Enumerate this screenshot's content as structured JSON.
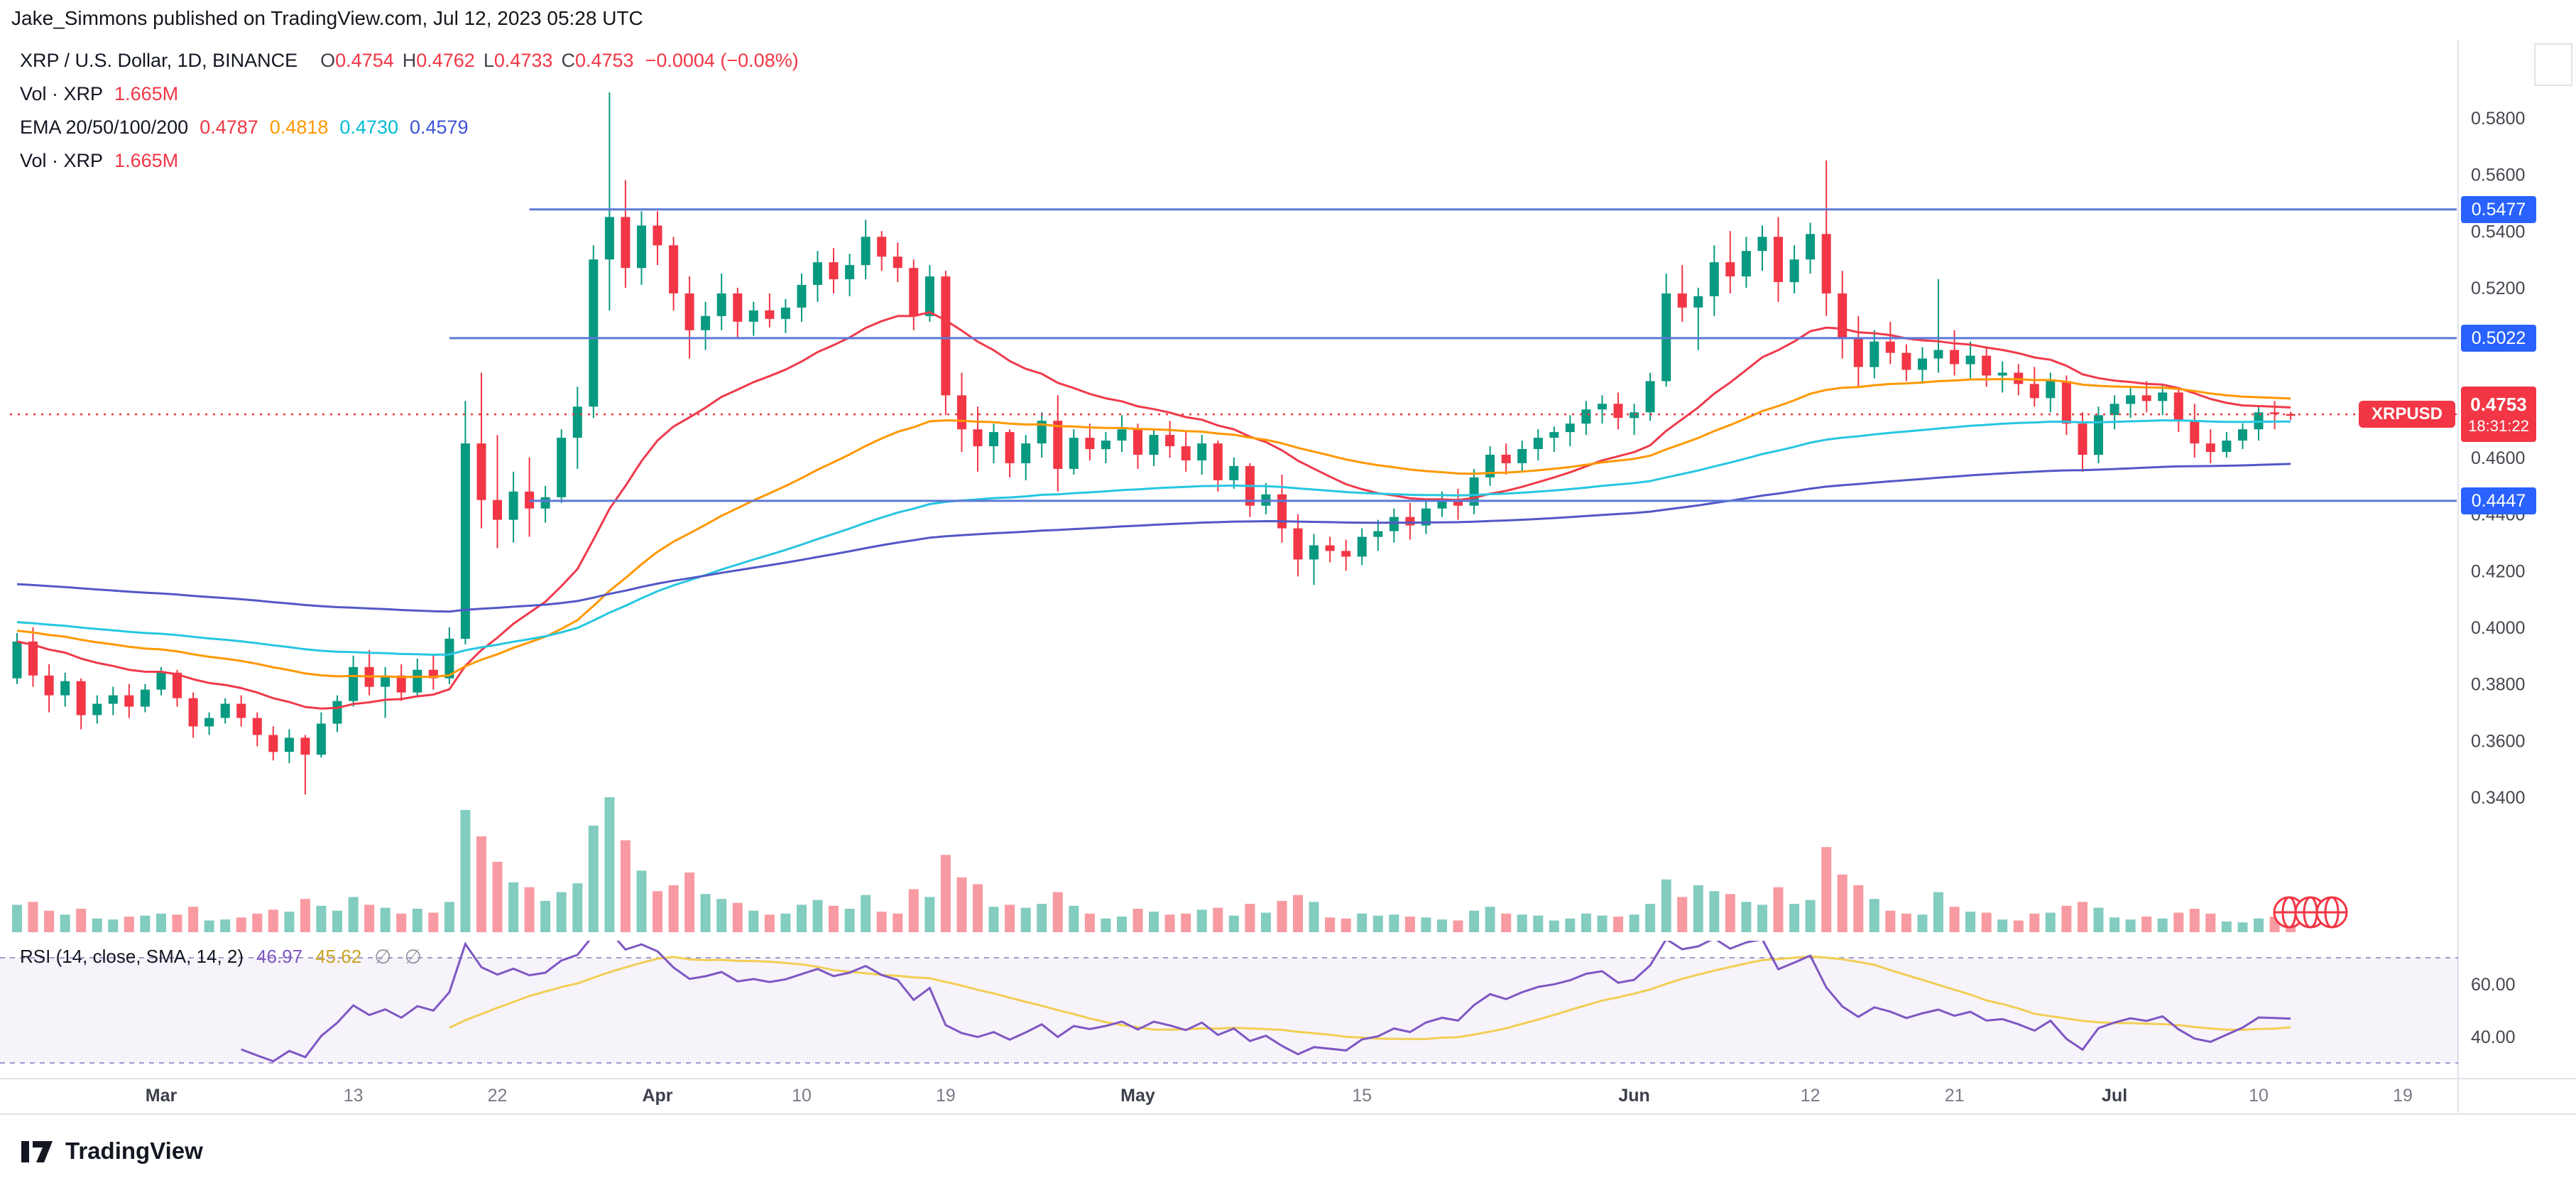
{
  "header": {
    "author": "Jake_Simmons",
    "rest": " published on TradingView.com, Jul 12, 2023 05:28 UTC"
  },
  "legend": {
    "symbol": "XRP / U.S. Dollar, 1D, BINANCE",
    "o_label": "O",
    "o": "0.4754",
    "h_label": "H",
    "h": "0.4762",
    "l_label": "L",
    "l": "0.4733",
    "c_label": "C",
    "c": "0.4753",
    "change": "−0.0004 (−0.08%)",
    "vol_title": "Vol · XRP",
    "vol_value": "1.665M",
    "ema_title": "EMA 20/50/100/200",
    "ema20": "0.4787",
    "ema50": "0.4818",
    "ema100": "0.4730",
    "ema200": "0.4579",
    "vol2_title": "Vol · XRP",
    "vol2_value": "1.665M"
  },
  "rsi_legend": {
    "title": "RSI (14, close, SMA, 14, 2)",
    "rsi_value": "46.97",
    "ma_value": "45.62",
    "badge1": "∅",
    "badge2": "∅"
  },
  "footer": {
    "brand": "TradingView"
  },
  "chart_data": {
    "type": "candlestick",
    "symbol": "XRPUSD",
    "exchange": "BINANCE",
    "interval": "1D",
    "title": "XRP / U.S. Dollar, 1D, BINANCE",
    "ylim": [
      0.34,
      0.58
    ],
    "grid": false,
    "price_axis_ticks": [
      "0.5800",
      "0.5600",
      "0.5400",
      "0.5200",
      "0.5000",
      "0.4800",
      "0.4600",
      "0.4400",
      "0.4200",
      "0.4000",
      "0.3800",
      "0.3600",
      "0.3400"
    ],
    "rsi_axis_ticks": [
      "60.00",
      "40.00"
    ],
    "rsi_bands": [
      70,
      30
    ],
    "time_axis": [
      {
        "label": "Mar",
        "i": 9,
        "major": true
      },
      {
        "label": "13",
        "i": 21,
        "major": false
      },
      {
        "label": "22",
        "i": 30,
        "major": false
      },
      {
        "label": "Apr",
        "i": 40,
        "major": true
      },
      {
        "label": "10",
        "i": 49,
        "major": false
      },
      {
        "label": "19",
        "i": 58,
        "major": false
      },
      {
        "label": "May",
        "i": 70,
        "major": true
      },
      {
        "label": "15",
        "i": 84,
        "major": false
      },
      {
        "label": "Jun",
        "i": 101,
        "major": true
      },
      {
        "label": "12",
        "i": 112,
        "major": false
      },
      {
        "label": "21",
        "i": 121,
        "major": false
      },
      {
        "label": "Jul",
        "i": 131,
        "major": true
      },
      {
        "label": "10",
        "i": 140,
        "major": false
      },
      {
        "label": "19",
        "i": 149,
        "major": false
      }
    ],
    "levels": [
      {
        "label": "0.5477",
        "price": 0.5477,
        "start_i": 32
      },
      {
        "label": "0.5022",
        "price": 0.5022,
        "start_i": 27
      },
      {
        "label": "0.4447",
        "price": 0.4447,
        "start_i": 32
      }
    ],
    "last_price": {
      "symbol_label": "XRPUSD",
      "price_label": "0.4753",
      "countdown": "18:31:22",
      "value": 0.4753
    },
    "indicators": {
      "ema_periods": [
        20,
        50,
        100,
        200
      ],
      "rsi_period": 14,
      "rsi_smoothing": 14
    },
    "colors": {
      "up": "#089981",
      "down": "#f23645",
      "ema20": "#ef3a4b",
      "ema50": "#ff9800",
      "ema100": "#27c6e0",
      "ema200": "#5357c6",
      "level_line": "#5b79d6",
      "level_tag": "#2962ff",
      "rsi": "#7e57c2",
      "rsi_ma": "#f2ce54",
      "axis_text": "#44474f",
      "separator": "#e0e3eb"
    },
    "candles": [
      [
        "2023-02-20",
        0.382,
        0.398,
        0.38,
        0.395,
        2.8
      ],
      [
        "2023-02-21",
        0.395,
        0.4,
        0.379,
        0.383,
        3.1
      ],
      [
        "2023-02-22",
        0.383,
        0.387,
        0.37,
        0.376,
        2.2
      ],
      [
        "2023-02-23",
        0.376,
        0.384,
        0.372,
        0.381,
        1.8
      ],
      [
        "2023-02-24",
        0.381,
        0.382,
        0.364,
        0.369,
        2.4
      ],
      [
        "2023-02-25",
        0.369,
        0.376,
        0.366,
        0.373,
        1.4
      ],
      [
        "2023-02-26",
        0.373,
        0.379,
        0.369,
        0.376,
        1.3
      ],
      [
        "2023-02-27",
        0.376,
        0.38,
        0.368,
        0.372,
        1.6
      ],
      [
        "2023-02-28",
        0.372,
        0.38,
        0.37,
        0.378,
        1.7
      ],
      [
        "2023-03-01",
        0.378,
        0.386,
        0.376,
        0.384,
        1.9
      ],
      [
        "2023-03-02",
        0.384,
        0.385,
        0.372,
        0.375,
        1.8
      ],
      [
        "2023-03-03",
        0.375,
        0.377,
        0.361,
        0.365,
        2.6
      ],
      [
        "2023-03-04",
        0.365,
        0.37,
        0.362,
        0.368,
        1.2
      ],
      [
        "2023-03-05",
        0.368,
        0.375,
        0.366,
        0.373,
        1.3
      ],
      [
        "2023-03-06",
        0.373,
        0.376,
        0.365,
        0.368,
        1.5
      ],
      [
        "2023-03-07",
        0.368,
        0.37,
        0.358,
        0.362,
        1.9
      ],
      [
        "2023-03-08",
        0.362,
        0.365,
        0.353,
        0.356,
        2.3
      ],
      [
        "2023-03-09",
        0.356,
        0.364,
        0.352,
        0.361,
        2.1
      ],
      [
        "2023-03-10",
        0.361,
        0.362,
        0.341,
        0.355,
        3.4
      ],
      [
        "2023-03-11",
        0.355,
        0.37,
        0.354,
        0.366,
        2.7
      ],
      [
        "2023-03-12",
        0.366,
        0.376,
        0.363,
        0.374,
        2.2
      ],
      [
        "2023-03-13",
        0.374,
        0.39,
        0.372,
        0.386,
        3.6
      ],
      [
        "2023-03-14",
        0.386,
        0.392,
        0.376,
        0.379,
        2.8
      ],
      [
        "2023-03-15",
        0.379,
        0.386,
        0.368,
        0.383,
        2.5
      ],
      [
        "2023-03-16",
        0.383,
        0.387,
        0.374,
        0.377,
        1.9
      ],
      [
        "2023-03-17",
        0.377,
        0.389,
        0.376,
        0.385,
        2.4
      ],
      [
        "2023-03-18",
        0.385,
        0.39,
        0.378,
        0.382,
        2.0
      ],
      [
        "2023-03-19",
        0.382,
        0.4,
        0.38,
        0.396,
        3.1
      ],
      [
        "2023-03-20",
        0.396,
        0.48,
        0.394,
        0.465,
        12.5
      ],
      [
        "2023-03-21",
        0.465,
        0.49,
        0.435,
        0.445,
        9.8
      ],
      [
        "2023-03-22",
        0.445,
        0.468,
        0.428,
        0.438,
        7.2
      ],
      [
        "2023-03-23",
        0.438,
        0.455,
        0.43,
        0.448,
        5.1
      ],
      [
        "2023-03-24",
        0.448,
        0.46,
        0.432,
        0.442,
        4.6
      ],
      [
        "2023-03-25",
        0.442,
        0.45,
        0.437,
        0.446,
        3.2
      ],
      [
        "2023-03-26",
        0.446,
        0.47,
        0.444,
        0.467,
        4.1
      ],
      [
        "2023-03-27",
        0.467,
        0.485,
        0.456,
        0.478,
        5.0
      ],
      [
        "2023-03-28",
        0.478,
        0.535,
        0.474,
        0.53,
        10.9
      ],
      [
        "2023-03-29",
        0.53,
        0.589,
        0.512,
        0.545,
        13.8
      ],
      [
        "2023-03-30",
        0.545,
        0.558,
        0.52,
        0.527,
        9.4
      ],
      [
        "2023-03-31",
        0.527,
        0.547,
        0.521,
        0.542,
        6.3
      ],
      [
        "2023-04-01",
        0.542,
        0.547,
        0.528,
        0.535,
        4.2
      ],
      [
        "2023-04-02",
        0.535,
        0.538,
        0.512,
        0.518,
        4.8
      ],
      [
        "2023-04-03",
        0.518,
        0.524,
        0.495,
        0.505,
        6.1
      ],
      [
        "2023-04-04",
        0.505,
        0.515,
        0.498,
        0.51,
        3.9
      ],
      [
        "2023-04-05",
        0.51,
        0.525,
        0.505,
        0.518,
        3.4
      ],
      [
        "2023-04-06",
        0.518,
        0.52,
        0.502,
        0.508,
        3.0
      ],
      [
        "2023-04-07",
        0.508,
        0.515,
        0.503,
        0.512,
        2.2
      ],
      [
        "2023-04-08",
        0.512,
        0.518,
        0.506,
        0.509,
        1.8
      ],
      [
        "2023-04-09",
        0.509,
        0.516,
        0.504,
        0.513,
        1.9
      ],
      [
        "2023-04-10",
        0.513,
        0.525,
        0.508,
        0.521,
        2.8
      ],
      [
        "2023-04-11",
        0.521,
        0.533,
        0.515,
        0.529,
        3.3
      ],
      [
        "2023-04-12",
        0.529,
        0.534,
        0.518,
        0.523,
        2.7
      ],
      [
        "2023-04-13",
        0.523,
        0.532,
        0.517,
        0.528,
        2.4
      ],
      [
        "2023-04-14",
        0.528,
        0.544,
        0.523,
        0.538,
        3.8
      ],
      [
        "2023-04-15",
        0.538,
        0.54,
        0.526,
        0.531,
        2.1
      ],
      [
        "2023-04-16",
        0.531,
        0.536,
        0.522,
        0.527,
        1.9
      ],
      [
        "2023-04-17",
        0.527,
        0.53,
        0.505,
        0.51,
        4.4
      ],
      [
        "2023-04-18",
        0.51,
        0.528,
        0.508,
        0.524,
        3.6
      ],
      [
        "2023-04-19",
        0.524,
        0.526,
        0.475,
        0.482,
        7.9
      ],
      [
        "2023-04-20",
        0.482,
        0.49,
        0.462,
        0.47,
        5.6
      ],
      [
        "2023-04-21",
        0.47,
        0.478,
        0.455,
        0.464,
        4.9
      ],
      [
        "2023-04-22",
        0.464,
        0.472,
        0.458,
        0.469,
        2.6
      ],
      [
        "2023-04-23",
        0.469,
        0.47,
        0.453,
        0.458,
        2.8
      ],
      [
        "2023-04-24",
        0.458,
        0.468,
        0.452,
        0.465,
        2.5
      ],
      [
        "2023-04-25",
        0.465,
        0.476,
        0.46,
        0.473,
        2.9
      ],
      [
        "2023-04-26",
        0.473,
        0.482,
        0.448,
        0.456,
        4.1
      ],
      [
        "2023-04-27",
        0.456,
        0.47,
        0.454,
        0.467,
        2.7
      ],
      [
        "2023-04-28",
        0.467,
        0.472,
        0.459,
        0.463,
        1.9
      ],
      [
        "2023-04-29",
        0.463,
        0.469,
        0.458,
        0.466,
        1.4
      ],
      [
        "2023-04-30",
        0.466,
        0.475,
        0.462,
        0.47,
        1.6
      ],
      [
        "2023-05-01",
        0.47,
        0.472,
        0.456,
        0.461,
        2.4
      ],
      [
        "2023-05-02",
        0.461,
        0.47,
        0.457,
        0.468,
        2.1
      ],
      [
        "2023-05-03",
        0.468,
        0.473,
        0.46,
        0.464,
        1.8
      ],
      [
        "2023-05-04",
        0.464,
        0.469,
        0.455,
        0.459,
        1.9
      ],
      [
        "2023-05-05",
        0.459,
        0.468,
        0.454,
        0.465,
        2.3
      ],
      [
        "2023-05-06",
        0.465,
        0.466,
        0.448,
        0.452,
        2.5
      ],
      [
        "2023-05-07",
        0.452,
        0.46,
        0.449,
        0.457,
        1.7
      ],
      [
        "2023-05-08",
        0.457,
        0.458,
        0.439,
        0.443,
        2.9
      ],
      [
        "2023-05-09",
        0.443,
        0.451,
        0.44,
        0.447,
        2.0
      ],
      [
        "2023-05-10",
        0.447,
        0.454,
        0.43,
        0.435,
        3.2
      ],
      [
        "2023-05-11",
        0.435,
        0.44,
        0.418,
        0.424,
        3.8
      ],
      [
        "2023-05-12",
        0.424,
        0.433,
        0.415,
        0.429,
        3.1
      ],
      [
        "2023-05-13",
        0.429,
        0.432,
        0.423,
        0.427,
        1.5
      ],
      [
        "2023-05-14",
        0.427,
        0.431,
        0.42,
        0.425,
        1.4
      ],
      [
        "2023-05-15",
        0.425,
        0.435,
        0.422,
        0.432,
        1.9
      ],
      [
        "2023-05-16",
        0.432,
        0.438,
        0.427,
        0.434,
        1.7
      ],
      [
        "2023-05-17",
        0.434,
        0.442,
        0.43,
        0.439,
        1.8
      ],
      [
        "2023-05-18",
        0.439,
        0.444,
        0.431,
        0.436,
        1.6
      ],
      [
        "2023-05-19",
        0.436,
        0.445,
        0.433,
        0.442,
        1.5
      ],
      [
        "2023-05-20",
        0.442,
        0.448,
        0.439,
        0.445,
        1.3
      ],
      [
        "2023-05-21",
        0.445,
        0.449,
        0.438,
        0.443,
        1.2
      ],
      [
        "2023-05-22",
        0.443,
        0.456,
        0.44,
        0.453,
        2.2
      ],
      [
        "2023-05-23",
        0.453,
        0.464,
        0.45,
        0.461,
        2.6
      ],
      [
        "2023-05-24",
        0.461,
        0.465,
        0.454,
        0.458,
        1.9
      ],
      [
        "2023-05-25",
        0.458,
        0.466,
        0.455,
        0.463,
        1.8
      ],
      [
        "2023-05-26",
        0.463,
        0.47,
        0.459,
        0.467,
        1.7
      ],
      [
        "2023-05-27",
        0.467,
        0.471,
        0.462,
        0.469,
        1.2
      ],
      [
        "2023-05-28",
        0.469,
        0.475,
        0.464,
        0.472,
        1.4
      ],
      [
        "2023-05-29",
        0.472,
        0.48,
        0.468,
        0.477,
        1.9
      ],
      [
        "2023-05-30",
        0.477,
        0.482,
        0.472,
        0.479,
        1.7
      ],
      [
        "2023-05-31",
        0.479,
        0.483,
        0.47,
        0.474,
        1.6
      ],
      [
        "2023-06-01",
        0.474,
        0.479,
        0.468,
        0.476,
        1.8
      ],
      [
        "2023-06-02",
        0.476,
        0.49,
        0.473,
        0.487,
        2.9
      ],
      [
        "2023-06-03",
        0.487,
        0.525,
        0.485,
        0.518,
        5.4
      ],
      [
        "2023-06-04",
        0.518,
        0.528,
        0.508,
        0.513,
        3.6
      ],
      [
        "2023-06-05",
        0.513,
        0.52,
        0.498,
        0.517,
        4.8
      ],
      [
        "2023-06-06",
        0.517,
        0.535,
        0.51,
        0.529,
        4.2
      ],
      [
        "2023-06-07",
        0.529,
        0.54,
        0.518,
        0.524,
        3.9
      ],
      [
        "2023-06-08",
        0.524,
        0.538,
        0.52,
        0.533,
        3.1
      ],
      [
        "2023-06-09",
        0.533,
        0.542,
        0.526,
        0.538,
        2.8
      ],
      [
        "2023-06-10",
        0.538,
        0.545,
        0.515,
        0.522,
        4.6
      ],
      [
        "2023-06-11",
        0.522,
        0.535,
        0.518,
        0.53,
        2.9
      ],
      [
        "2023-06-12",
        0.53,
        0.543,
        0.525,
        0.539,
        3.3
      ],
      [
        "2023-06-13",
        0.539,
        0.565,
        0.51,
        0.518,
        8.7
      ],
      [
        "2023-06-14",
        0.518,
        0.526,
        0.495,
        0.502,
        5.9
      ],
      [
        "2023-06-15",
        0.502,
        0.51,
        0.485,
        0.492,
        4.8
      ],
      [
        "2023-06-16",
        0.492,
        0.505,
        0.488,
        0.501,
        3.4
      ],
      [
        "2023-06-17",
        0.501,
        0.508,
        0.493,
        0.497,
        2.2
      ],
      [
        "2023-06-18",
        0.497,
        0.5,
        0.487,
        0.491,
        1.9
      ],
      [
        "2023-06-19",
        0.491,
        0.499,
        0.486,
        0.495,
        1.8
      ],
      [
        "2023-06-20",
        0.495,
        0.523,
        0.49,
        0.498,
        4.1
      ],
      [
        "2023-06-21",
        0.498,
        0.505,
        0.489,
        0.493,
        2.6
      ],
      [
        "2023-06-22",
        0.493,
        0.501,
        0.488,
        0.496,
        2.1
      ],
      [
        "2023-06-23",
        0.496,
        0.499,
        0.485,
        0.489,
        2.0
      ],
      [
        "2023-06-24",
        0.489,
        0.494,
        0.483,
        0.49,
        1.3
      ],
      [
        "2023-06-25",
        0.49,
        0.493,
        0.482,
        0.486,
        1.2
      ],
      [
        "2023-06-26",
        0.486,
        0.492,
        0.478,
        0.481,
        1.9
      ],
      [
        "2023-06-27",
        0.481,
        0.49,
        0.476,
        0.487,
        2.0
      ],
      [
        "2023-06-28",
        0.487,
        0.489,
        0.468,
        0.472,
        2.7
      ],
      [
        "2023-06-29",
        0.472,
        0.476,
        0.455,
        0.461,
        3.1
      ],
      [
        "2023-06-30",
        0.461,
        0.478,
        0.458,
        0.475,
        2.5
      ],
      [
        "2023-07-01",
        0.475,
        0.482,
        0.47,
        0.479,
        1.5
      ],
      [
        "2023-07-02",
        0.479,
        0.485,
        0.474,
        0.482,
        1.3
      ],
      [
        "2023-07-03",
        0.482,
        0.487,
        0.476,
        0.48,
        1.6
      ],
      [
        "2023-07-04",
        0.48,
        0.486,
        0.475,
        0.483,
        1.4
      ],
      [
        "2023-07-05",
        0.483,
        0.484,
        0.469,
        0.473,
        2.0
      ],
      [
        "2023-07-06",
        0.473,
        0.479,
        0.46,
        0.465,
        2.4
      ],
      [
        "2023-07-07",
        0.465,
        0.47,
        0.458,
        0.462,
        1.9
      ],
      [
        "2023-07-08",
        0.462,
        0.469,
        0.46,
        0.466,
        1.1
      ],
      [
        "2023-07-09",
        0.466,
        0.472,
        0.463,
        0.47,
        1.0
      ],
      [
        "2023-07-10",
        0.47,
        0.478,
        0.466,
        0.476,
        1.4
      ],
      [
        "2023-07-11",
        0.476,
        0.48,
        0.47,
        0.4757,
        1.6
      ],
      [
        "2023-07-12",
        0.4754,
        0.4762,
        0.4733,
        0.4753,
        1.665
      ]
    ]
  }
}
